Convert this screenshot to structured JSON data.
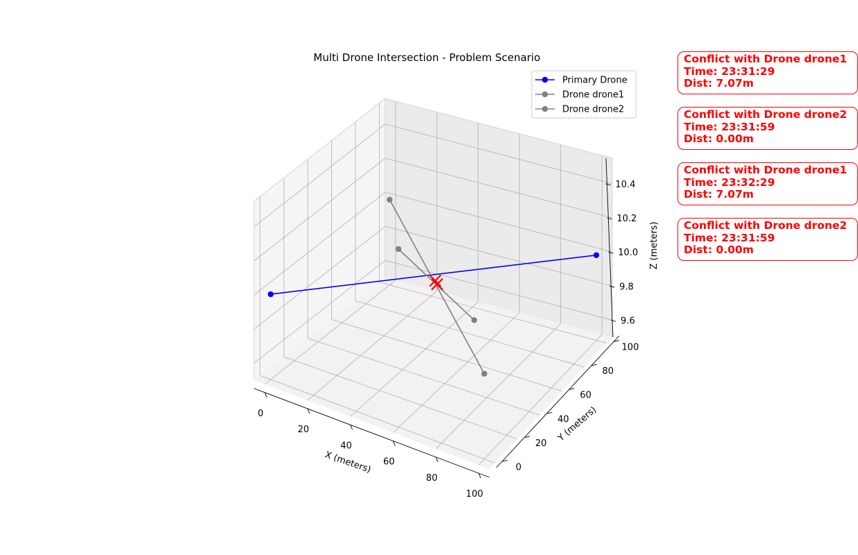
{
  "chart_data": {
    "type": "line3d",
    "title": "Multi Drone Intersection - Problem Scenario",
    "xlabel": "X (meters)",
    "ylabel": "Y (meters)",
    "zlabel": "Z (meters)",
    "xlim": [
      -5,
      105
    ],
    "ylim": [
      -5,
      105
    ],
    "zlim": [
      9.5,
      10.55
    ],
    "xticks": [
      "0",
      "20",
      "40",
      "60",
      "80",
      "100"
    ],
    "yticks": [
      "0",
      "20",
      "40",
      "60",
      "80",
      "100"
    ],
    "zticks": [
      "9.6",
      "9.8",
      "10.0",
      "10.2",
      "10.4"
    ],
    "grid": true,
    "legend_position": "top-right",
    "series": [
      {
        "name": "Primary Drone",
        "color": "#0000ff",
        "points": [
          [
            0,
            0,
            10
          ],
          [
            100,
            100,
            10
          ]
        ]
      },
      {
        "name": "Drone drone1",
        "color": "#808080",
        "points": [
          [
            0,
            100,
            10
          ],
          [
            100,
            0,
            10
          ]
        ]
      },
      {
        "name": "Drone drone2",
        "color": "#808080",
        "points": [
          [
            10,
            90,
            9.8
          ],
          [
            90,
            10,
            10.2
          ]
        ]
      }
    ],
    "conflict_markers": [
      {
        "x": 50,
        "y": 50,
        "z": 10,
        "color": "#ff0000",
        "marker": "x"
      },
      {
        "x": 52,
        "y": 48,
        "z": 10,
        "color": "#ff0000",
        "marker": "x"
      }
    ]
  },
  "conflicts": [
    {
      "title": "Conflict with Drone drone1",
      "time": "Time: 23:31:29",
      "dist": "Dist: 7.07m"
    },
    {
      "title": "Conflict with Drone drone2",
      "time": "Time: 23:31:59",
      "dist": "Dist: 0.00m"
    },
    {
      "title": "Conflict with Drone drone1",
      "time": "Time: 23:32:29",
      "dist": "Dist: 7.07m"
    },
    {
      "title": "Conflict with Drone drone2",
      "time": "Time: 23:31:59",
      "dist": "Dist: 0.00m"
    }
  ]
}
